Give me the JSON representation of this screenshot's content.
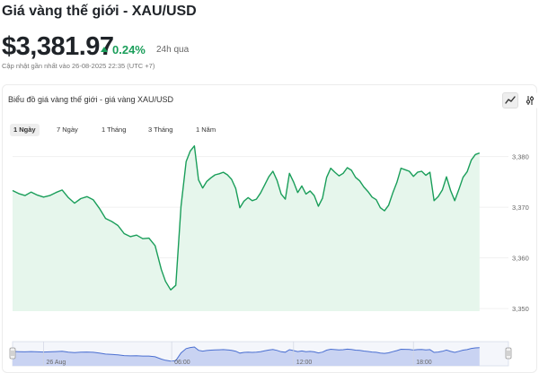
{
  "header": {
    "title": "Giá vàng thế giới - XAU/USD",
    "price": "$3,381.97",
    "change": "0.24%",
    "period": "24h qua",
    "updated": "Cập nhật gần nhất vào 26-08-2025 22:35 (UTC +7)"
  },
  "chart_card": {
    "title": "Biểu đồ giá vàng thế giới - giá vàng XAU/USD",
    "tools": [
      "line-chart-icon",
      "settings-sliders-icon"
    ]
  },
  "tabs": [
    {
      "label": "1 Ngày",
      "active": true
    },
    {
      "label": "7 Ngày",
      "active": false
    },
    {
      "label": "1 Tháng",
      "active": false
    },
    {
      "label": "3 Tháng",
      "active": false
    },
    {
      "label": "1 Năm",
      "active": false
    }
  ],
  "colors": {
    "line": "#1a9e5a",
    "area": "#e6f6ec",
    "accent_up": "#1a9e5a",
    "navigator": "#c9d3f2",
    "navigator_line": "#4a6fd1"
  },
  "chart_data": {
    "type": "area",
    "ylim": [
      3349.5,
      3384
    ],
    "yticks": [
      3350,
      3360,
      3370,
      3380
    ],
    "ytick_labels": [
      "3,350",
      "3,360",
      "3,370",
      "3,380"
    ],
    "x_range": [
      0,
      24
    ],
    "values": [
      [
        0.0,
        3373.3
      ],
      [
        0.3,
        3372.7
      ],
      [
        0.6,
        3372.3
      ],
      [
        0.9,
        3373.0
      ],
      [
        1.2,
        3372.4
      ],
      [
        1.5,
        3372.0
      ],
      [
        1.8,
        3372.3
      ],
      [
        2.1,
        3372.9
      ],
      [
        2.4,
        3373.4
      ],
      [
        2.7,
        3371.9
      ],
      [
        3.0,
        3370.8
      ],
      [
        3.3,
        3371.7
      ],
      [
        3.6,
        3372.1
      ],
      [
        3.9,
        3371.5
      ],
      [
        4.2,
        3369.8
      ],
      [
        4.5,
        3367.8
      ],
      [
        4.8,
        3367.2
      ],
      [
        5.1,
        3366.4
      ],
      [
        5.4,
        3364.8
      ],
      [
        5.7,
        3364.2
      ],
      [
        6.0,
        3364.5
      ],
      [
        6.3,
        3363.8
      ],
      [
        6.6,
        3363.9
      ],
      [
        6.9,
        3362.4
      ],
      [
        7.2,
        3357.7
      ],
      [
        7.4,
        3355.4
      ],
      [
        7.65,
        3353.7
      ],
      [
        7.9,
        3354.6
      ],
      [
        8.15,
        3370.2
      ],
      [
        8.4,
        3379.0
      ],
      [
        8.6,
        3381.1
      ],
      [
        8.8,
        3382.1
      ],
      [
        9.0,
        3375.4
      ],
      [
        9.2,
        3373.8
      ],
      [
        9.4,
        3375.1
      ],
      [
        9.6,
        3375.8
      ],
      [
        9.8,
        3376.4
      ],
      [
        10.0,
        3376.6
      ],
      [
        10.2,
        3376.9
      ],
      [
        10.4,
        3376.4
      ],
      [
        10.6,
        3375.5
      ],
      [
        10.8,
        3373.7
      ],
      [
        11.0,
        3369.9
      ],
      [
        11.2,
        3371.2
      ],
      [
        11.4,
        3371.9
      ],
      [
        11.6,
        3371.3
      ],
      [
        11.8,
        3371.6
      ],
      [
        12.0,
        3372.8
      ],
      [
        12.2,
        3374.4
      ],
      [
        12.4,
        3376.0
      ],
      [
        12.6,
        3377.1
      ],
      [
        12.8,
        3375.3
      ],
      [
        13.0,
        3372.6
      ],
      [
        13.2,
        3371.6
      ],
      [
        13.4,
        3376.7
      ],
      [
        13.6,
        3375.0
      ],
      [
        13.8,
        3372.9
      ],
      [
        14.0,
        3374.2
      ],
      [
        14.2,
        3372.6
      ],
      [
        14.4,
        3373.2
      ],
      [
        14.6,
        3372.3
      ],
      [
        14.8,
        3370.2
      ],
      [
        15.0,
        3371.8
      ],
      [
        15.2,
        3375.9
      ],
      [
        15.4,
        3377.7
      ],
      [
        15.6,
        3376.9
      ],
      [
        15.8,
        3376.2
      ],
      [
        16.0,
        3376.7
      ],
      [
        16.2,
        3377.8
      ],
      [
        16.4,
        3377.3
      ],
      [
        16.6,
        3375.9
      ],
      [
        16.8,
        3375.2
      ],
      [
        17.0,
        3374.0
      ],
      [
        17.2,
        3373.1
      ],
      [
        17.4,
        3372.0
      ],
      [
        17.6,
        3371.5
      ],
      [
        17.8,
        3369.9
      ],
      [
        18.0,
        3369.3
      ],
      [
        18.2,
        3370.4
      ],
      [
        18.4,
        3372.8
      ],
      [
        18.6,
        3374.9
      ],
      [
        18.8,
        3377.7
      ],
      [
        19.0,
        3377.4
      ],
      [
        19.2,
        3377.1
      ],
      [
        19.4,
        3376.1
      ],
      [
        19.6,
        3376.9
      ],
      [
        19.8,
        3377.1
      ],
      [
        20.0,
        3376.3
      ],
      [
        20.2,
        3376.9
      ],
      [
        20.4,
        3371.3
      ],
      [
        20.6,
        3372.1
      ],
      [
        20.8,
        3373.4
      ],
      [
        21.0,
        3376.0
      ],
      [
        21.2,
        3373.3
      ],
      [
        21.4,
        3371.3
      ],
      [
        21.6,
        3373.5
      ],
      [
        21.8,
        3375.9
      ],
      [
        22.0,
        3377.0
      ],
      [
        22.2,
        3379.3
      ],
      [
        22.4,
        3380.4
      ],
      [
        22.6,
        3380.7
      ]
    ]
  },
  "navigator": {
    "x_labels": [
      {
        "label": "26 Aug",
        "at": 1.5
      },
      {
        "label": "06:00",
        "at": 7.7
      },
      {
        "label": "12:00",
        "at": 13.6
      },
      {
        "label": "18:00",
        "at": 19.4
      }
    ]
  }
}
